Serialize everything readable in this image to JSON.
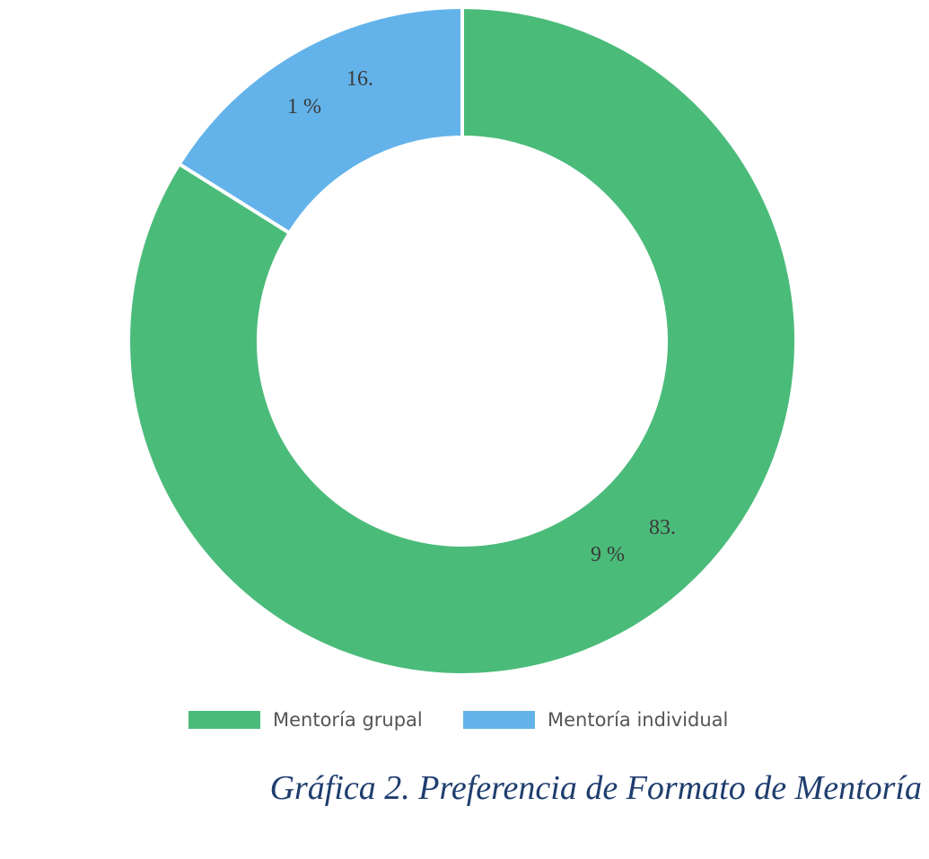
{
  "chart_data": {
    "type": "pie",
    "variant": "donut",
    "categories": [
      "Mentoría grupal",
      "Mentoría individual"
    ],
    "values": [
      83.9,
      16.1
    ],
    "value_unit": "%",
    "data_labels": [
      {
        "line1": "83.",
        "line2": "9 %"
      },
      {
        "line1": "16.",
        "line2": "1 %"
      }
    ],
    "colors": [
      "#4bbb7a",
      "#63b3ea"
    ],
    "legend": {
      "position": "bottom",
      "entries": [
        "Mentoría grupal",
        "Mentoría individual"
      ]
    }
  },
  "caption": "Gráfica 2. Preferencia de Formato de Mentoría"
}
